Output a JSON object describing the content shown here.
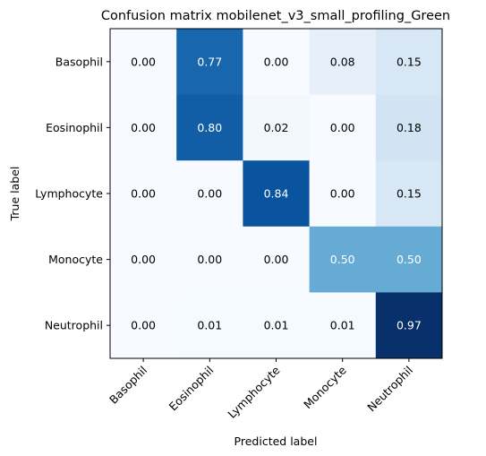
{
  "chart_data": {
    "type": "heatmap",
    "title": "Confusion matrix mobilenet_v3_small_profiling_Green",
    "xlabel": "Predicted label",
    "ylabel": "True label",
    "row_labels": [
      "Basophil",
      "Eosinophil",
      "Lymphocyte",
      "Monocyte",
      "Neutrophil"
    ],
    "col_labels": [
      "Basophil",
      "Eosinophil",
      "Lymphocyte",
      "Monocyte",
      "Neutrophil"
    ],
    "values": [
      [
        0.0,
        0.77,
        0.0,
        0.08,
        0.15
      ],
      [
        0.0,
        0.8,
        0.02,
        0.0,
        0.18
      ],
      [
        0.0,
        0.0,
        0.84,
        0.0,
        0.15
      ],
      [
        0.0,
        0.0,
        0.0,
        0.5,
        0.5
      ],
      [
        0.0,
        0.01,
        0.01,
        0.01,
        0.97
      ]
    ],
    "value_labels": [
      [
        "0.00",
        "0.77",
        "0.00",
        "0.08",
        "0.15"
      ],
      [
        "0.00",
        "0.80",
        "0.02",
        "0.00",
        "0.18"
      ],
      [
        "0.00",
        "0.00",
        "0.84",
        "0.00",
        "0.15"
      ],
      [
        "0.00",
        "0.00",
        "0.00",
        "0.50",
        "0.50"
      ],
      [
        "0.00",
        "0.01",
        "0.01",
        "0.01",
        "0.97"
      ]
    ],
    "colormap": "Blues",
    "colormap_stops": [
      "#f7fbff",
      "#deebf7",
      "#c6dbef",
      "#9ecae1",
      "#6baed6",
      "#4292c6",
      "#2171b5",
      "#08519c",
      "#08306b"
    ],
    "value_range": [
      0,
      0.97
    ],
    "grid": false
  }
}
